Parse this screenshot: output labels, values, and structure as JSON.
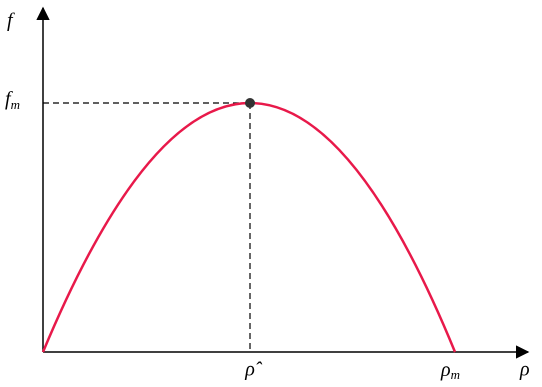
{
  "axes": {
    "y_label": "f",
    "x_label": "ρ"
  },
  "labels": {
    "peak_flow": {
      "main": "f",
      "sub": "m"
    },
    "critical_density": "ρ̂",
    "max_density": {
      "main": "ρ",
      "sub": "m"
    }
  }
}
